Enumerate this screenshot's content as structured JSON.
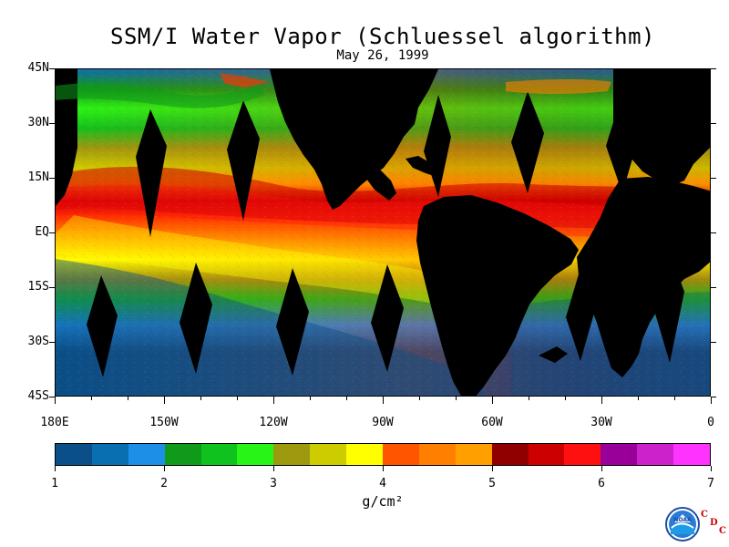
{
  "title": "SSM/I Water Vapor (Schluessel algorithm)",
  "subtitle": "May 26, 1999",
  "unit": "g/cm²",
  "logo": {
    "name": "NOAA",
    "mark": [
      "C",
      "D",
      "C"
    ]
  },
  "y_axis": {
    "labels": [
      "45N",
      "30N",
      "15N",
      "EQ",
      "15S",
      "30S",
      "45S"
    ]
  },
  "x_axis": {
    "labels": [
      "180E",
      "150W",
      "120W",
      "90W",
      "60W",
      "30W",
      "0"
    ]
  },
  "legend": {
    "min": 1,
    "max": 7,
    "labels": [
      "1",
      "2",
      "3",
      "4",
      "5",
      "6",
      "7"
    ],
    "colors": [
      "#0a4f88",
      "#0a6fb0",
      "#1e8fe6",
      "#0f9a1a",
      "#10c21d",
      "#28f515",
      "#9d9a10",
      "#cccc00",
      "#ffff00",
      "#ff5500",
      "#ff7f00",
      "#ffa000",
      "#900000",
      "#cc0000",
      "#ff1010",
      "#990099",
      "#cc22cc",
      "#ff33ff"
    ]
  },
  "colors": {
    "ocean_background": "#0b5a9a",
    "land": "#000000",
    "high_vapor": "#ff3300",
    "very_high_vapor": "#cc0000",
    "low_vapor": "#0a4f88"
  }
}
